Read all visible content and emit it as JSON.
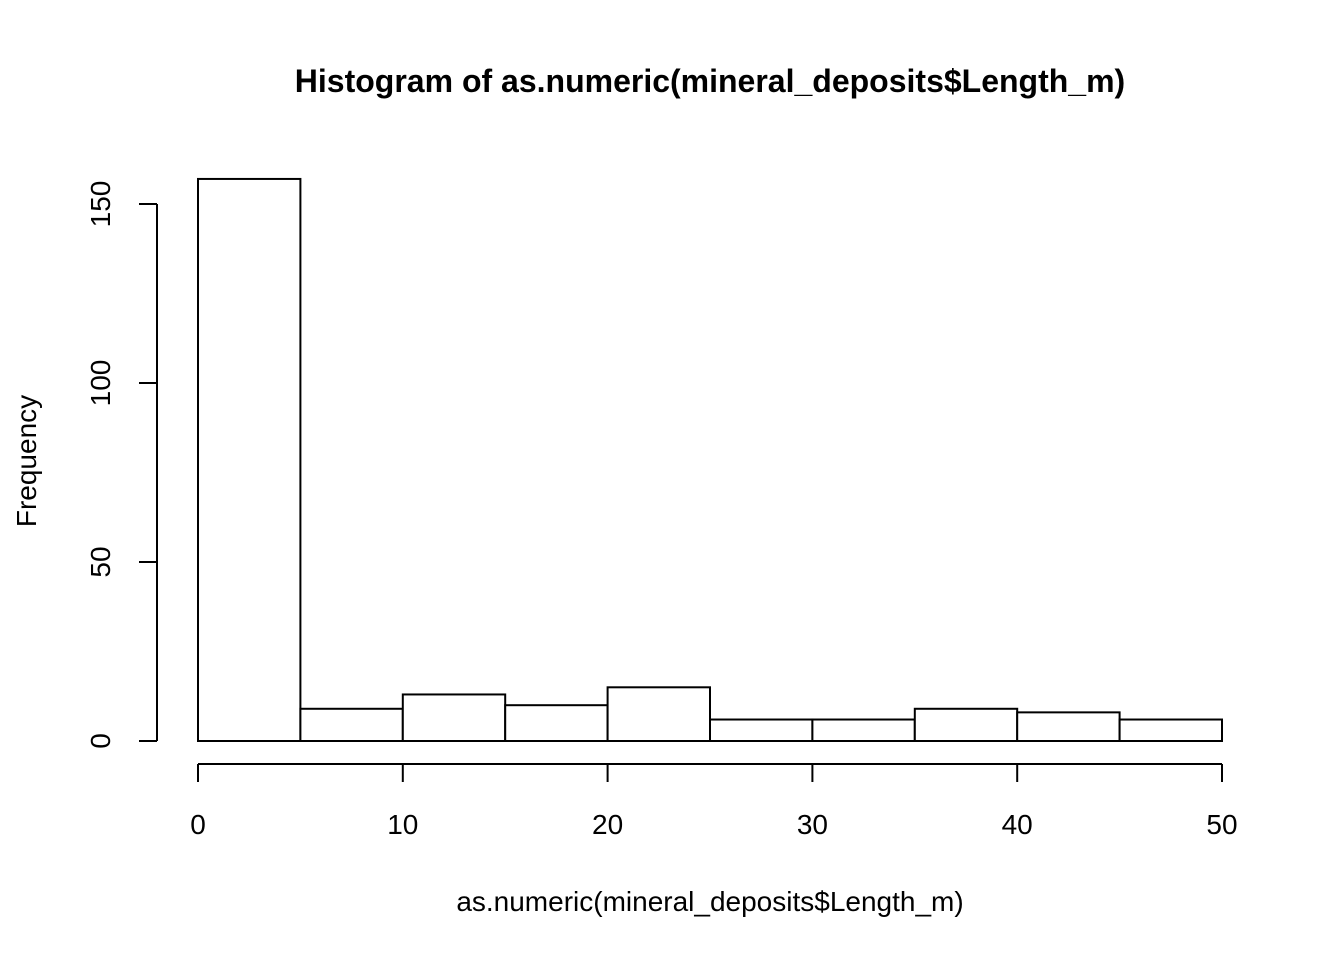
{
  "chart_data": {
    "type": "bar",
    "title": "Histogram of as.numeric(mineral_deposits$Length_m)",
    "xlabel": "as.numeric(mineral_deposits$Length_m)",
    "ylabel": "Frequency",
    "bins": [
      {
        "start": 0,
        "end": 5,
        "count": 157
      },
      {
        "start": 5,
        "end": 10,
        "count": 9
      },
      {
        "start": 10,
        "end": 15,
        "count": 13
      },
      {
        "start": 15,
        "end": 20,
        "count": 10
      },
      {
        "start": 20,
        "end": 25,
        "count": 15
      },
      {
        "start": 25,
        "end": 30,
        "count": 6
      },
      {
        "start": 30,
        "end": 35,
        "count": 6
      },
      {
        "start": 35,
        "end": 40,
        "count": 9
      },
      {
        "start": 40,
        "end": 45,
        "count": 8
      },
      {
        "start": 45,
        "end": 50,
        "count": 6
      }
    ],
    "xlim": [
      0,
      50
    ],
    "ylim": [
      0,
      157
    ],
    "x_ticks": [
      "0",
      "10",
      "20",
      "30",
      "40",
      "50"
    ],
    "y_ticks": [
      "0",
      "50",
      "100",
      "150"
    ],
    "grid": false,
    "bar_fill": "#ffffff",
    "bar_stroke": "#000000"
  }
}
